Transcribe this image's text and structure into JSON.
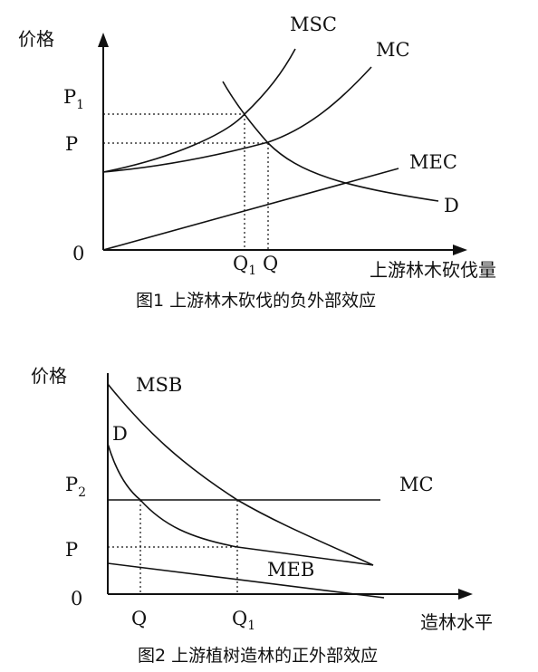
{
  "figure1": {
    "y_axis_label": "价格",
    "x_axis_label": "上游林木砍伐量",
    "caption": "图1  上游林木砍伐的负外部效应",
    "origin": "0",
    "y_ticks": {
      "p1": "P",
      "p1_sub": "1",
      "p": "P"
    },
    "x_ticks": {
      "q1": "Q",
      "q1_sub": "1",
      "q": "Q"
    },
    "curves": {
      "msc": "MSC",
      "mc": "MC",
      "mec": "MEC",
      "d": "D"
    }
  },
  "figure2": {
    "y_axis_label": "价格",
    "x_axis_label": "造林水平",
    "caption": "图2  上游植树造林的正外部效应",
    "origin": "0",
    "y_ticks": {
      "p2": "P",
      "p2_sub": "2",
      "p": "P"
    },
    "x_ticks": {
      "q": "Q",
      "q1": "Q",
      "q1_sub": "1"
    },
    "curves": {
      "msb": "MSB",
      "d": "D",
      "mc": "MC",
      "meb": "MEB"
    }
  }
}
